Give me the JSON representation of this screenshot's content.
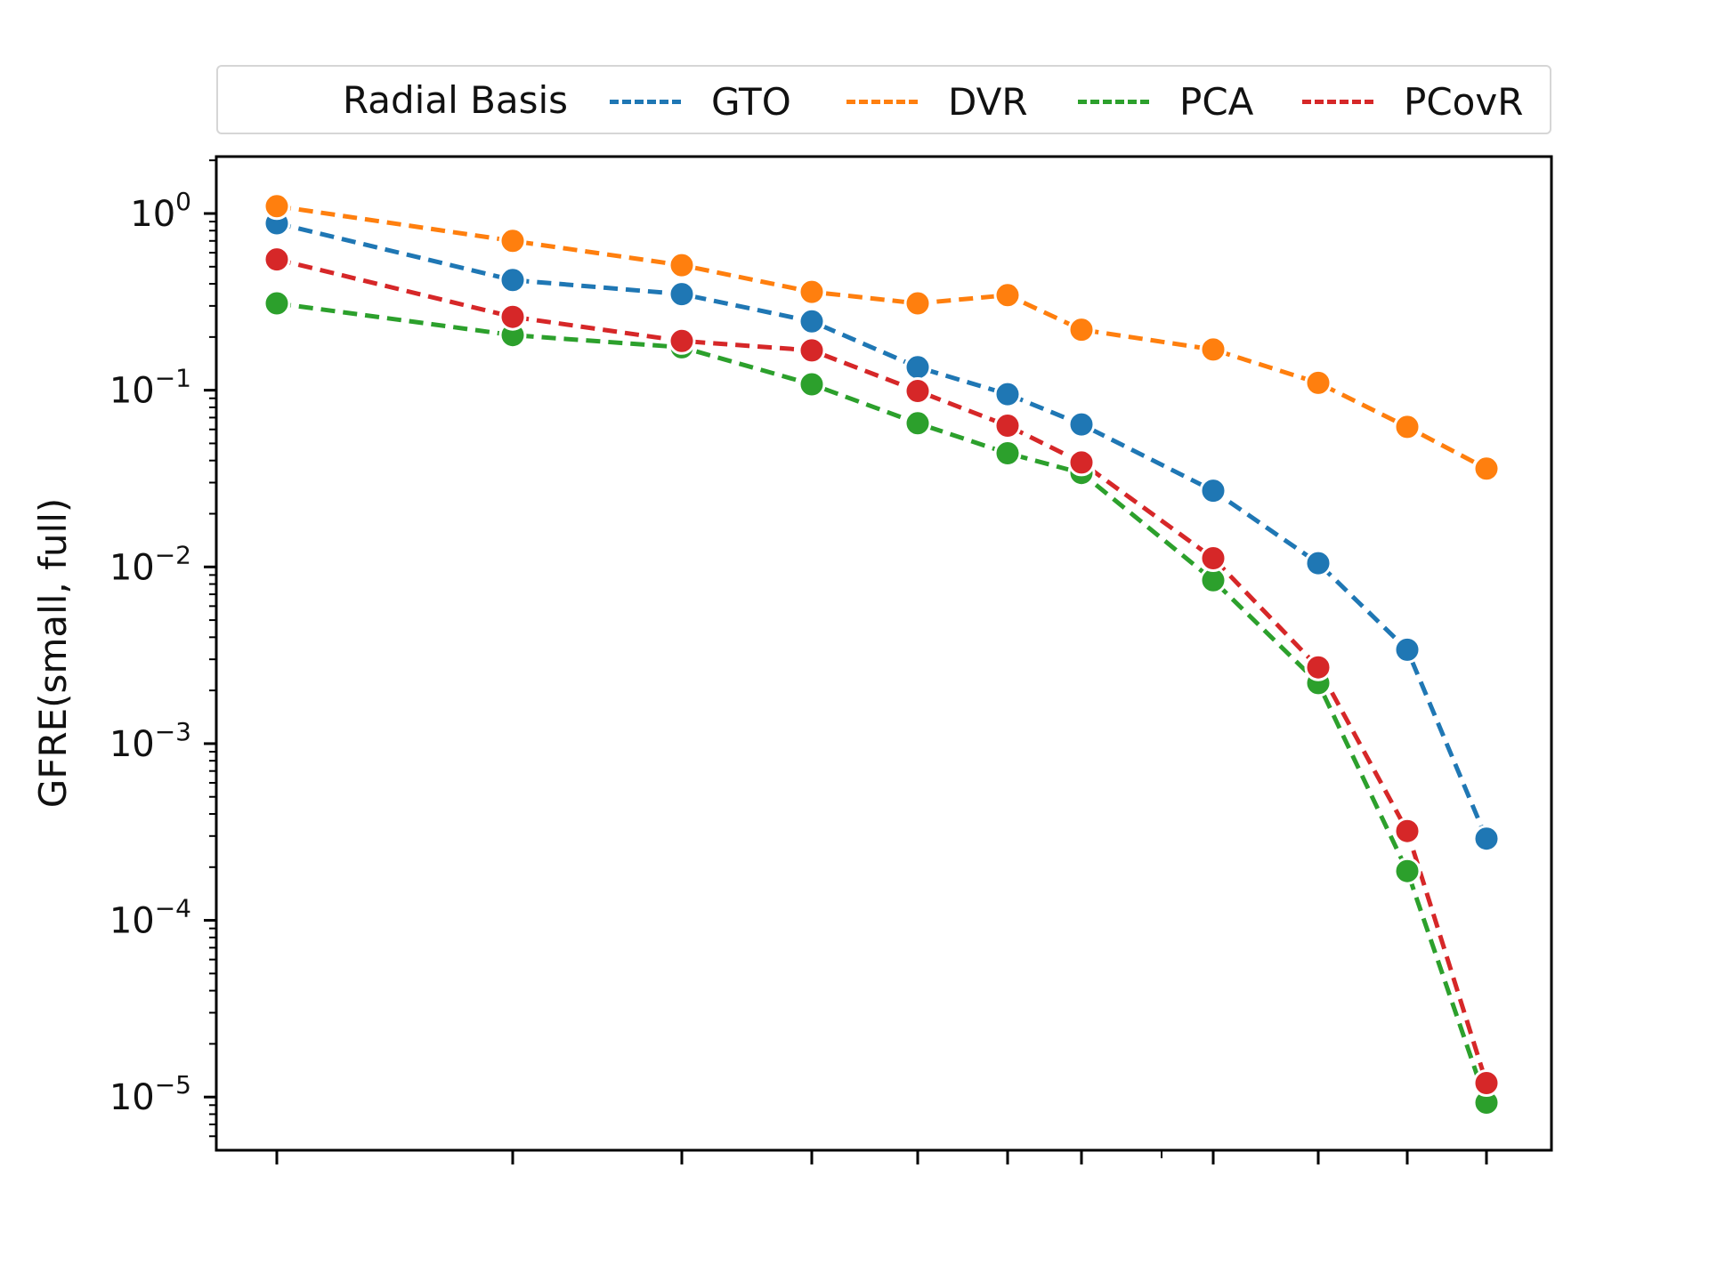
{
  "chart_data": {
    "type": "line",
    "title": "",
    "xlabel": "",
    "ylabel": "GFRE(small, full)",
    "yscale": "log",
    "ylim": [
      5e-06,
      2.1
    ],
    "grid": false,
    "legend": {
      "placement": "top, outside axes",
      "title": "Radial Basis"
    },
    "x": [
      1,
      2,
      3,
      4,
      5,
      6,
      7,
      8,
      9,
      10,
      11
    ],
    "x_tick_labels": [],
    "y_ticks": [
      {
        "base": "10",
        "exp": "0",
        "value": 1
      },
      {
        "base": "10",
        "exp": "−1",
        "value": 0.1
      },
      {
        "base": "10",
        "exp": "−2",
        "value": 0.01
      },
      {
        "base": "10",
        "exp": "−3",
        "value": 0.001
      },
      {
        "base": "10",
        "exp": "−4",
        "value": 0.0001
      },
      {
        "base": "10",
        "exp": "−5",
        "value": 1e-05
      }
    ],
    "series": [
      {
        "name": "GTO",
        "color": "#1f77b4",
        "values": [
          0.88,
          0.42,
          0.35,
          0.245,
          0.135,
          0.095,
          0.064,
          0.027,
          0.0105,
          0.0034,
          0.00029
        ]
      },
      {
        "name": "DVR",
        "color": "#ff7f0e",
        "values": [
          1.1,
          0.7,
          0.51,
          0.36,
          0.31,
          0.345,
          0.22,
          0.17,
          0.11,
          0.062,
          0.036
        ]
      },
      {
        "name": "PCA",
        "color": "#2ca02c",
        "values": [
          0.31,
          0.205,
          0.175,
          0.108,
          0.065,
          0.044,
          0.034,
          0.0084,
          0.0022,
          0.00019,
          9.3e-06
        ]
      },
      {
        "name": "PCovR",
        "color": "#d62728",
        "values": [
          0.55,
          0.26,
          0.19,
          0.168,
          0.099,
          0.063,
          0.039,
          0.0112,
          0.0027,
          0.00032,
          1.2e-05
        ]
      }
    ]
  }
}
